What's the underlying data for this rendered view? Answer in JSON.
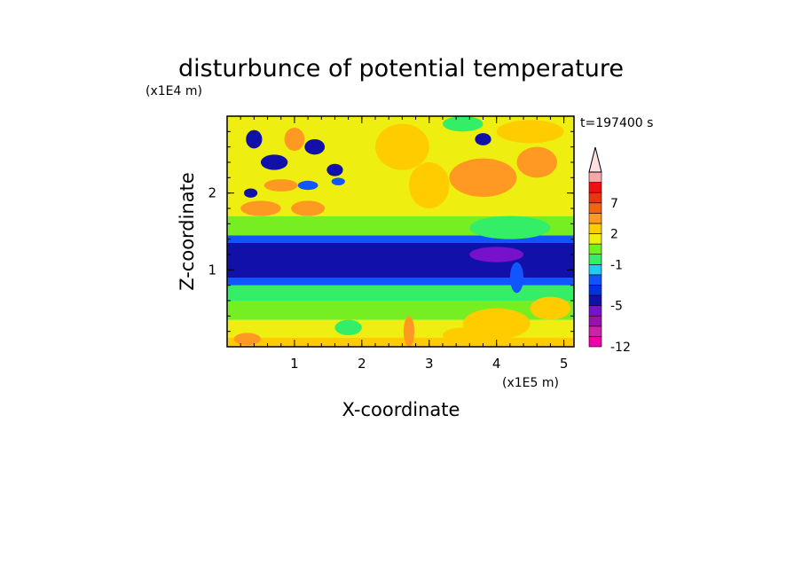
{
  "chart_data": {
    "type": "heatmap",
    "title": "disturbunce of potential temperature",
    "time_label": "t=197400 s",
    "xlabel": "X-coordinate",
    "ylabel": "Z-coordinate",
    "x_unit": "(x1E5 m)",
    "y_unit": "(x1E4 m)",
    "xlim": [
      0,
      5.15
    ],
    "ylim": [
      0,
      3.0
    ],
    "x_ticks": [
      1,
      2,
      3,
      4,
      5
    ],
    "y_ticks": [
      1,
      2
    ],
    "colorbar": {
      "levels": [
        -12,
        -10,
        -8,
        -6,
        -5,
        -4,
        -3,
        -2,
        -1,
        0,
        1,
        2,
        3,
        5,
        7,
        9,
        11,
        13
      ],
      "tick_labels": [
        "-12",
        "-5",
        "-1",
        "2",
        "7"
      ],
      "tick_values": [
        -12,
        -5,
        -1,
        2,
        7
      ],
      "colors": [
        "#ee00aa",
        "#cc22aa",
        "#9911aa",
        "#7711cc",
        "#1111aa",
        "#0033dd",
        "#1155ff",
        "#22ccee",
        "#33ee66",
        "#77ee22",
        "#eeee11",
        "#ffcc00",
        "#ff9922",
        "#ee6611",
        "#ee3311",
        "#ee1111",
        "#f5a8a8"
      ],
      "extend_max": true
    },
    "field": {
      "layers": [
        {
          "z_range": [
            0.0,
            0.12
          ],
          "value": 2.5
        },
        {
          "z_range": [
            0.12,
            0.35
          ],
          "value": 1.5
        },
        {
          "z_range": [
            0.35,
            0.6
          ],
          "value": 0.5
        },
        {
          "z_range": [
            0.6,
            0.8
          ],
          "value": -0.5
        },
        {
          "z_range": [
            0.8,
            0.9
          ],
          "value": -2.5
        },
        {
          "z_range": [
            0.9,
            1.35
          ],
          "value": -4.5
        },
        {
          "z_range": [
            1.35,
            1.45
          ],
          "value": -2.5
        },
        {
          "z_range": [
            1.45,
            1.7
          ],
          "value": 0.5
        },
        {
          "z_range": [
            1.7,
            3.0
          ],
          "value": 1.5
        }
      ],
      "features": [
        {
          "x": 0.4,
          "z": 2.7,
          "rx": 0.12,
          "rz": 0.12,
          "value": -4.5
        },
        {
          "x": 0.7,
          "z": 2.4,
          "rx": 0.2,
          "rz": 0.1,
          "value": -4.5
        },
        {
          "x": 1.3,
          "z": 2.6,
          "rx": 0.15,
          "rz": 0.1,
          "value": -4.5
        },
        {
          "x": 1.2,
          "z": 2.1,
          "rx": 0.15,
          "rz": 0.06,
          "value": -2.5
        },
        {
          "x": 1.6,
          "z": 2.3,
          "rx": 0.12,
          "rz": 0.08,
          "value": -4.5
        },
        {
          "x": 1.65,
          "z": 2.15,
          "rx": 0.1,
          "rz": 0.05,
          "value": -2.5
        },
        {
          "x": 0.35,
          "z": 2.0,
          "rx": 0.1,
          "rz": 0.06,
          "value": -4.5
        },
        {
          "x": 0.5,
          "z": 1.8,
          "rx": 0.3,
          "rz": 0.1,
          "value": 4.0
        },
        {
          "x": 1.2,
          "z": 1.8,
          "rx": 0.25,
          "rz": 0.1,
          "value": 4.0
        },
        {
          "x": 0.8,
          "z": 2.1,
          "rx": 0.25,
          "rz": 0.08,
          "value": 4.0
        },
        {
          "x": 1.0,
          "z": 2.7,
          "rx": 0.15,
          "rz": 0.15,
          "value": 4.0
        },
        {
          "x": 3.8,
          "z": 2.7,
          "rx": 0.12,
          "rz": 0.08,
          "value": -4.5
        },
        {
          "x": 3.5,
          "z": 2.9,
          "rx": 0.3,
          "rz": 0.1,
          "value": -0.5
        },
        {
          "x": 3.8,
          "z": 2.2,
          "rx": 0.5,
          "rz": 0.25,
          "value": 4.0
        },
        {
          "x": 4.6,
          "z": 2.4,
          "rx": 0.3,
          "rz": 0.2,
          "value": 4.0
        },
        {
          "x": 4.5,
          "z": 2.8,
          "rx": 0.5,
          "rz": 0.15,
          "value": 2.5
        },
        {
          "x": 2.6,
          "z": 2.6,
          "rx": 0.4,
          "rz": 0.3,
          "value": 2.5
        },
        {
          "x": 3.0,
          "z": 2.1,
          "rx": 0.3,
          "rz": 0.3,
          "value": 2.5
        },
        {
          "x": 4.2,
          "z": 1.55,
          "rx": 0.6,
          "rz": 0.15,
          "value": -0.5
        },
        {
          "x": 2.0,
          "z": 1.5,
          "rx": 0.5,
          "rz": 0.05,
          "value": 0.5
        },
        {
          "x": 4.0,
          "z": 1.2,
          "rx": 0.4,
          "rz": 0.1,
          "value": -6.0
        },
        {
          "x": 4.3,
          "z": 0.9,
          "rx": 0.1,
          "rz": 0.2,
          "value": -2.5
        },
        {
          "x": 4.0,
          "z": 0.3,
          "rx": 0.5,
          "rz": 0.2,
          "value": 2.5
        },
        {
          "x": 3.5,
          "z": 0.15,
          "rx": 0.3,
          "rz": 0.1,
          "value": 2.5
        },
        {
          "x": 2.7,
          "z": 0.2,
          "rx": 0.08,
          "rz": 0.2,
          "value": 4.0
        },
        {
          "x": 1.8,
          "z": 0.25,
          "rx": 0.2,
          "rz": 0.1,
          "value": -0.5
        },
        {
          "x": 0.3,
          "z": 0.1,
          "rx": 0.2,
          "rz": 0.08,
          "value": 4.0
        },
        {
          "x": 4.8,
          "z": 0.5,
          "rx": 0.3,
          "rz": 0.15,
          "value": 2.5
        }
      ]
    }
  }
}
